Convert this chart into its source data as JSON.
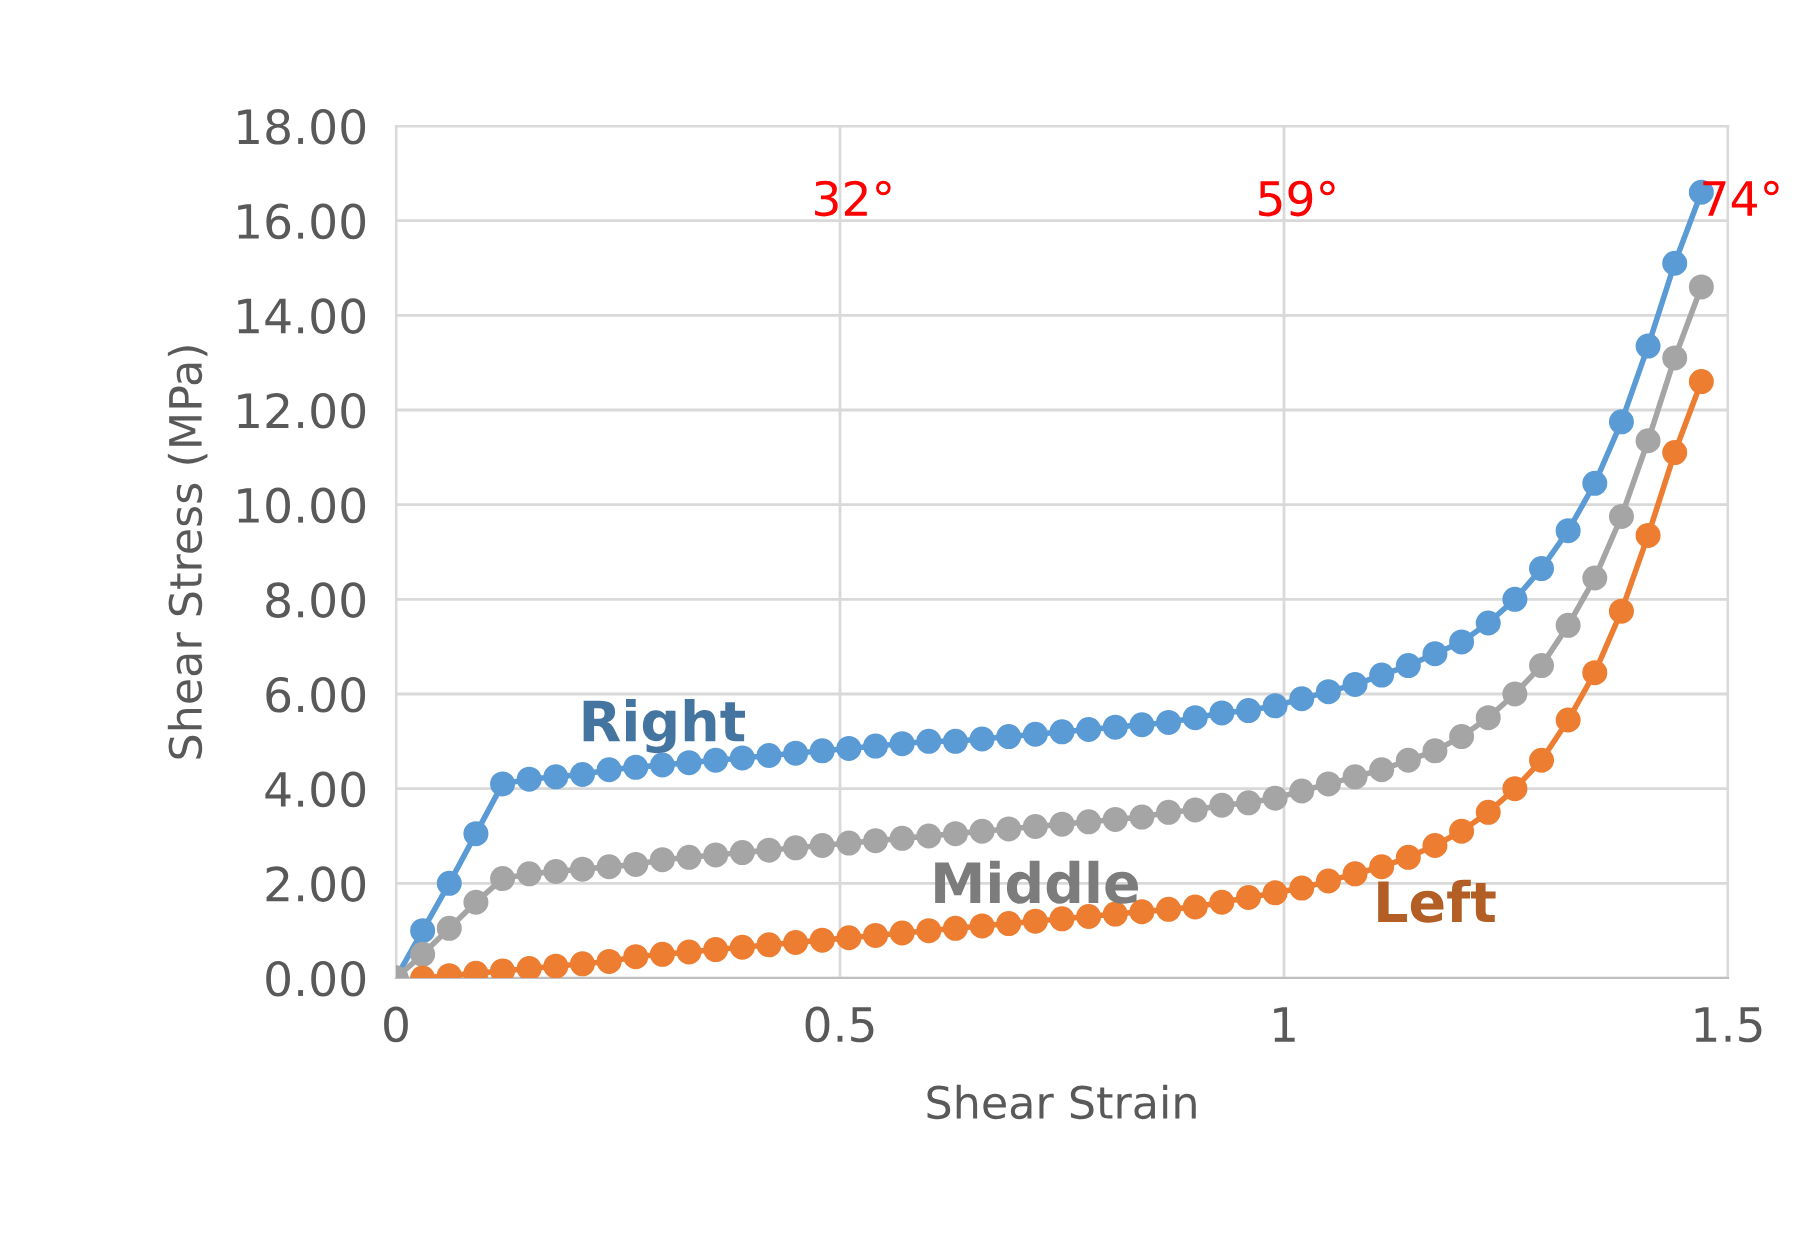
{
  "chart_data": {
    "type": "line",
    "xlabel": "Shear Strain",
    "ylabel": "Shear Stress (MPa)",
    "xlim": [
      0,
      1.5
    ],
    "xticks": [
      0,
      0.5,
      1,
      1.5
    ],
    "ylim": [
      0,
      18
    ],
    "yticks": [
      {
        "value": 0,
        "label": "0.00"
      },
      {
        "value": 2,
        "label": "2.00"
      },
      {
        "value": 4,
        "label": "4.00"
      },
      {
        "value": 6,
        "label": "6.00"
      },
      {
        "value": 8,
        "label": "8.00"
      },
      {
        "value": 10,
        "label": "10.00"
      },
      {
        "value": 12,
        "label": "12.00"
      },
      {
        "value": 14,
        "label": "14.00"
      },
      {
        "value": 16,
        "label": "16.00"
      },
      {
        "value": 18,
        "label": "18.00"
      }
    ],
    "grid": true,
    "marker": "circle",
    "line_style": "solid",
    "annotations": [
      "32°",
      "59°",
      "74°"
    ],
    "series": [
      {
        "name": "Right",
        "color": "#5b9bd5",
        "x": [
          0,
          0.03,
          0.06,
          0.09,
          0.12,
          0.15,
          0.18,
          0.21,
          0.24,
          0.27,
          0.3,
          0.33,
          0.36,
          0.39,
          0.42,
          0.45,
          0.48,
          0.51,
          0.54,
          0.57,
          0.6,
          0.63,
          0.66,
          0.69,
          0.72,
          0.75,
          0.78,
          0.81,
          0.84,
          0.87,
          0.9,
          0.93,
          0.96,
          0.99,
          1.02,
          1.05,
          1.08,
          1.11,
          1.14,
          1.17,
          1.2,
          1.23,
          1.26,
          1.29,
          1.32,
          1.35,
          1.38,
          1.41,
          1.44,
          1.47
        ],
        "values": [
          0,
          1.0,
          2.0,
          3.05,
          4.1,
          4.2,
          4.25,
          4.3,
          4.4,
          4.45,
          4.5,
          4.55,
          4.6,
          4.65,
          4.7,
          4.75,
          4.8,
          4.85,
          4.9,
          4.95,
          5.0,
          5.0,
          5.05,
          5.1,
          5.15,
          5.2,
          5.25,
          5.3,
          5.35,
          5.4,
          5.5,
          5.6,
          5.65,
          5.75,
          5.9,
          6.05,
          6.2,
          6.4,
          6.6,
          6.85,
          7.1,
          7.5,
          8.0,
          8.65,
          9.45,
          10.45,
          11.75,
          13.35,
          15.1,
          16.6
        ]
      },
      {
        "name": "Middle",
        "color": "#a5a5a5",
        "x": [
          0,
          0.03,
          0.06,
          0.09,
          0.12,
          0.15,
          0.18,
          0.21,
          0.24,
          0.27,
          0.3,
          0.33,
          0.36,
          0.39,
          0.42,
          0.45,
          0.48,
          0.51,
          0.54,
          0.57,
          0.6,
          0.63,
          0.66,
          0.69,
          0.72,
          0.75,
          0.78,
          0.81,
          0.84,
          0.87,
          0.9,
          0.93,
          0.96,
          0.99,
          1.02,
          1.05,
          1.08,
          1.11,
          1.14,
          1.17,
          1.2,
          1.23,
          1.26,
          1.29,
          1.32,
          1.35,
          1.38,
          1.41,
          1.44,
          1.47
        ],
        "values": [
          0,
          0.5,
          1.05,
          1.6,
          2.1,
          2.2,
          2.25,
          2.3,
          2.35,
          2.4,
          2.5,
          2.55,
          2.6,
          2.65,
          2.7,
          2.75,
          2.8,
          2.85,
          2.9,
          2.95,
          3.0,
          3.05,
          3.1,
          3.15,
          3.2,
          3.25,
          3.3,
          3.35,
          3.4,
          3.5,
          3.55,
          3.65,
          3.7,
          3.8,
          3.95,
          4.1,
          4.25,
          4.4,
          4.6,
          4.8,
          5.1,
          5.5,
          6.0,
          6.6,
          7.45,
          8.45,
          9.75,
          11.35,
          13.1,
          14.6
        ]
      },
      {
        "name": "Left",
        "color": "#ed7d31",
        "x": [
          0.03,
          0.06,
          0.09,
          0.12,
          0.15,
          0.18,
          0.21,
          0.24,
          0.27,
          0.3,
          0.33,
          0.36,
          0.39,
          0.42,
          0.45,
          0.48,
          0.51,
          0.54,
          0.57,
          0.6,
          0.63,
          0.66,
          0.69,
          0.72,
          0.75,
          0.78,
          0.81,
          0.84,
          0.87,
          0.9,
          0.93,
          0.96,
          0.99,
          1.02,
          1.05,
          1.08,
          1.11,
          1.14,
          1.17,
          1.2,
          1.23,
          1.26,
          1.29,
          1.32,
          1.35,
          1.38,
          1.41,
          1.44,
          1.47
        ],
        "values": [
          0.0,
          0.05,
          0.1,
          0.15,
          0.2,
          0.25,
          0.3,
          0.35,
          0.45,
          0.5,
          0.55,
          0.6,
          0.65,
          0.7,
          0.75,
          0.8,
          0.85,
          0.9,
          0.95,
          1.0,
          1.05,
          1.1,
          1.15,
          1.2,
          1.25,
          1.3,
          1.35,
          1.4,
          1.45,
          1.5,
          1.6,
          1.7,
          1.8,
          1.9,
          2.05,
          2.2,
          2.35,
          2.55,
          2.8,
          3.1,
          3.5,
          4.0,
          4.6,
          5.45,
          6.45,
          7.75,
          9.35,
          11.1,
          12.6
        ]
      }
    ]
  }
}
